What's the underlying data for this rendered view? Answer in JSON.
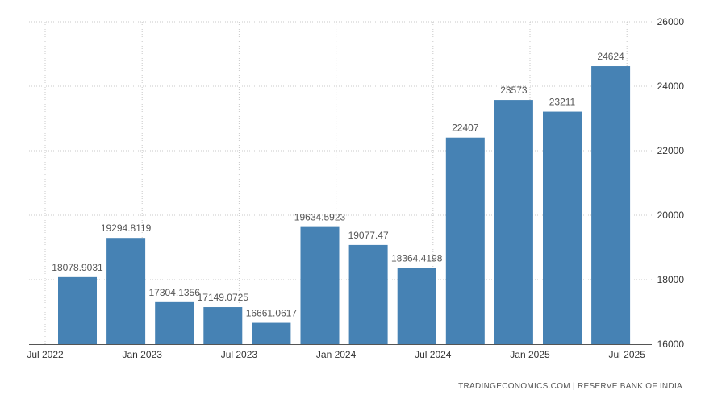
{
  "chart_data": {
    "type": "bar",
    "categories": [
      "Oct 2022",
      "Jan 2023",
      "Apr 2023",
      "Jul 2023",
      "Oct 2023",
      "Jan 2024",
      "Apr 2024",
      "Jul 2024",
      "Oct 2024",
      "Jan 2025",
      "Apr 2025",
      "Jul 2025"
    ],
    "values": [
      18078.9031,
      19294.8119,
      17304.1356,
      17149.0725,
      16661.0617,
      19634.5923,
      19077.47,
      18364.4198,
      22407,
      23573,
      23211,
      24624
    ],
    "value_labels": [
      "18078.9031",
      "19294.8119",
      "17304.1356",
      "17149.0725",
      "16661.0617",
      "19634.5923",
      "19077.47",
      "18364.4198",
      "22407",
      "23573",
      "23211",
      "24624"
    ],
    "x_tick_labels": [
      "Jul 2022",
      "Jan 2023",
      "Jul 2023",
      "Jan 2024",
      "Jul 2024",
      "Jan 2025",
      "Jul 2025"
    ],
    "y_ticks": [
      16000,
      18000,
      20000,
      22000,
      24000,
      26000
    ],
    "ylim": [
      16000,
      26000
    ],
    "y_axis_position": "right",
    "grid": true,
    "bar_color": "#4682b4",
    "title": "",
    "xlabel": "",
    "ylabel": ""
  },
  "source": "TRADINGECONOMICS.COM  |  RESERVE BANK OF INDIA"
}
